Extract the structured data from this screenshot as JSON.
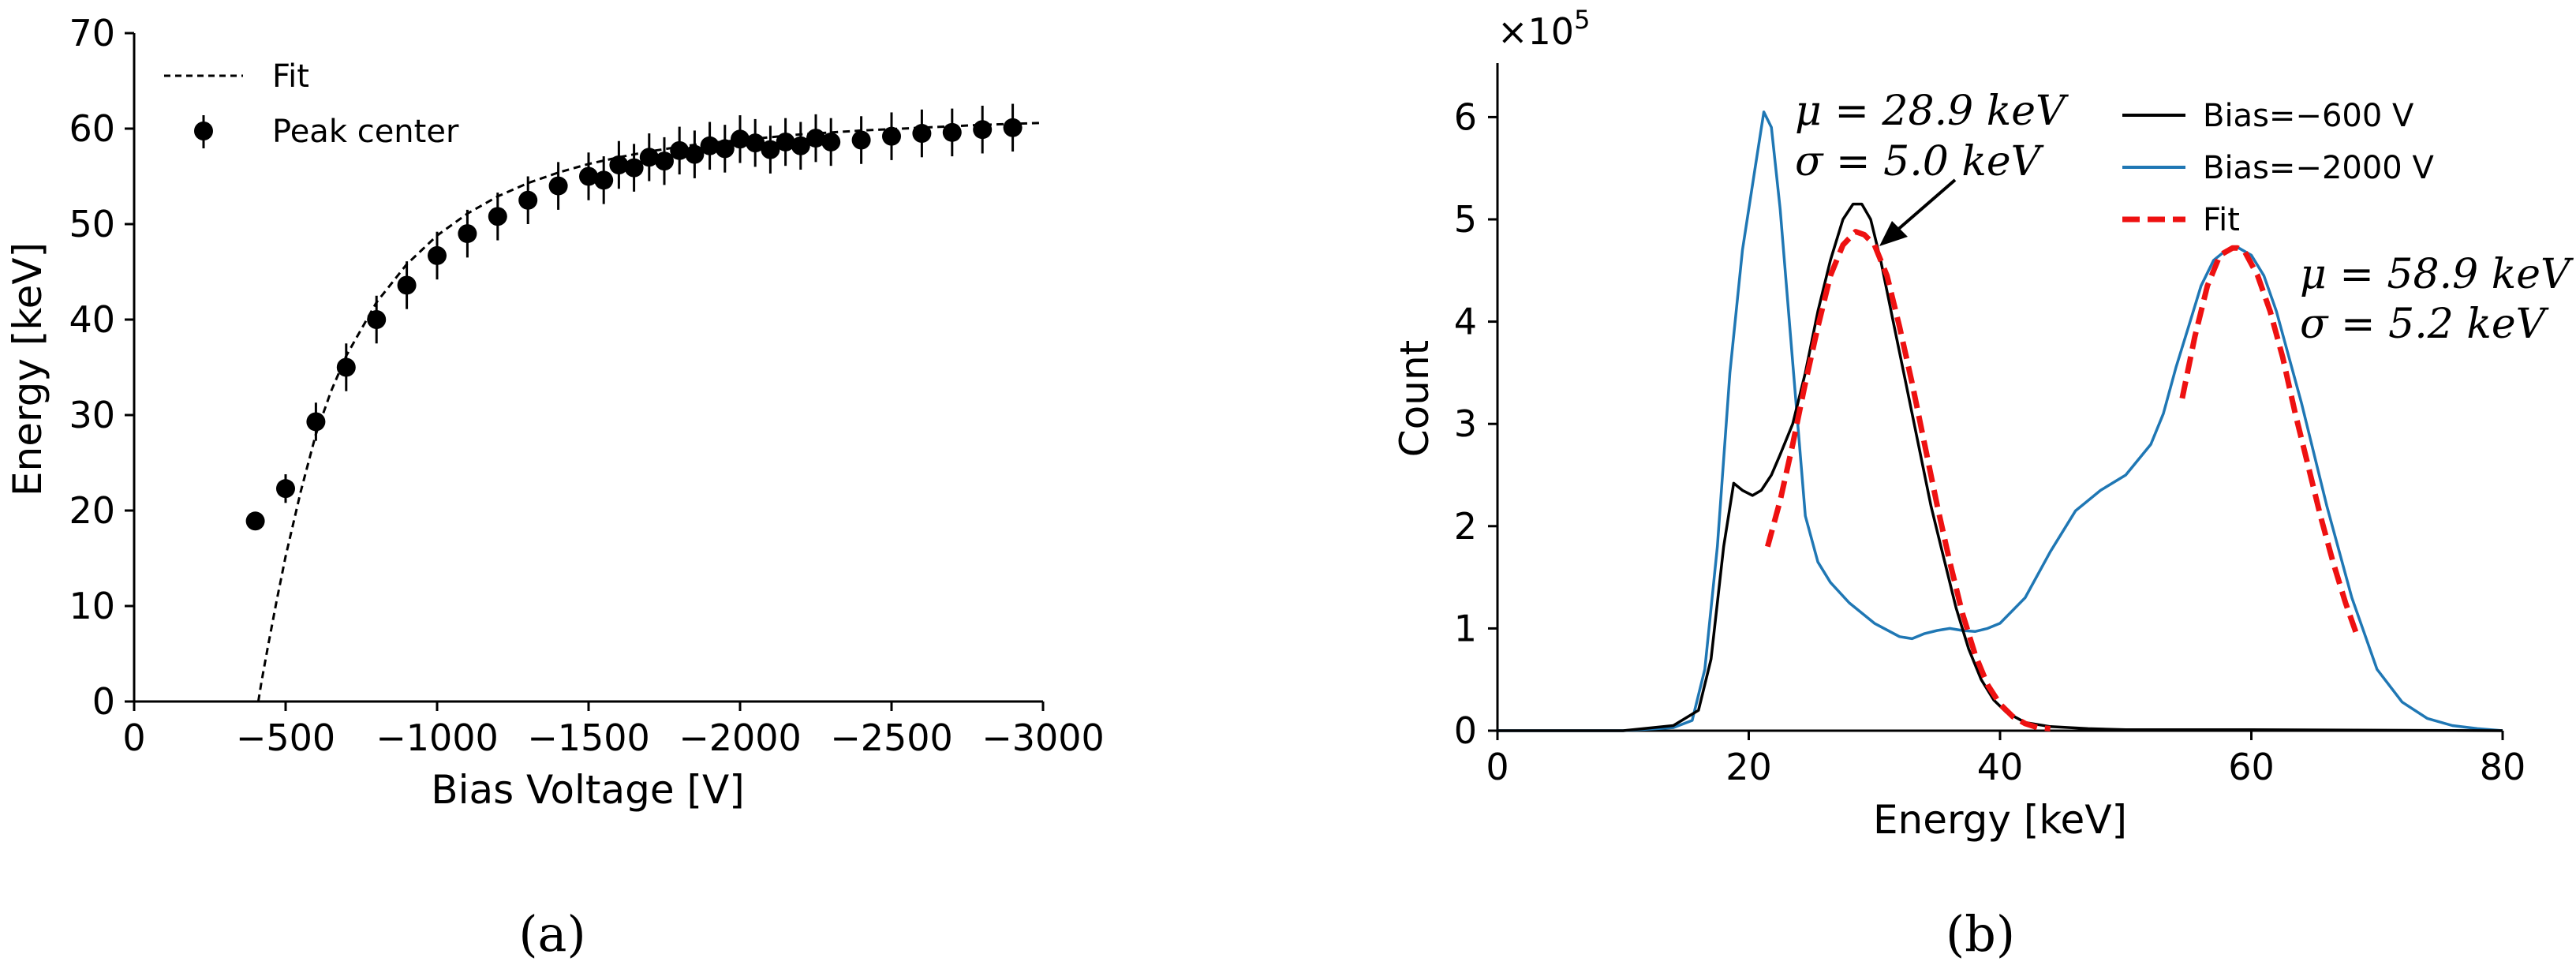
{
  "panels": {
    "a_label": "(a)",
    "b_label": "(b)"
  },
  "chart_data": [
    {
      "type": "scatter",
      "panel": "a",
      "xlabel": "Bias Voltage [V]",
      "ylabel": "Energy [keV]",
      "xlim": [
        0,
        -3000
      ],
      "ylim": [
        0,
        70
      ],
      "xticks": [
        0,
        -500,
        -1000,
        -1500,
        -2000,
        -2500,
        -3000
      ],
      "xtick_labels": [
        "0",
        "−500",
        "−1000",
        "−1500",
        "−2000",
        "−2500",
        "−3000"
      ],
      "yticks": [
        0,
        10,
        20,
        30,
        40,
        50,
        60,
        70
      ],
      "ytick_labels": [
        "0",
        "10",
        "20",
        "30",
        "40",
        "50",
        "60",
        "70"
      ],
      "legend_position": "top-left",
      "series": [
        {
          "name": "Peak center",
          "style": "markers-with-errorbars",
          "color": "#000000",
          "points": [
            {
              "x": -400,
              "y": 18.9,
              "err": 0
            },
            {
              "x": -500,
              "y": 22.3,
              "err": 1.5
            },
            {
              "x": -600,
              "y": 29.3,
              "err": 2.0
            },
            {
              "x": -700,
              "y": 35.0,
              "err": 2.5
            },
            {
              "x": -800,
              "y": 40.0,
              "err": 2.5
            },
            {
              "x": -900,
              "y": 43.6,
              "err": 2.5
            },
            {
              "x": -1000,
              "y": 46.7,
              "err": 2.5
            },
            {
              "x": -1100,
              "y": 49.0,
              "err": 2.5
            },
            {
              "x": -1200,
              "y": 50.8,
              "err": 2.5
            },
            {
              "x": -1300,
              "y": 52.5,
              "err": 2.5
            },
            {
              "x": -1400,
              "y": 54.0,
              "err": 2.5
            },
            {
              "x": -1500,
              "y": 55.0,
              "err": 2.5
            },
            {
              "x": -1550,
              "y": 54.6,
              "err": 2.5
            },
            {
              "x": -1600,
              "y": 56.2,
              "err": 2.5
            },
            {
              "x": -1650,
              "y": 55.9,
              "err": 2.5
            },
            {
              "x": -1700,
              "y": 57.0,
              "err": 2.5
            },
            {
              "x": -1750,
              "y": 56.6,
              "err": 2.5
            },
            {
              "x": -1800,
              "y": 57.7,
              "err": 2.5
            },
            {
              "x": -1850,
              "y": 57.3,
              "err": 2.5
            },
            {
              "x": -1900,
              "y": 58.2,
              "err": 2.5
            },
            {
              "x": -1950,
              "y": 57.9,
              "err": 2.5
            },
            {
              "x": -2000,
              "y": 58.9,
              "err": 2.5
            },
            {
              "x": -2050,
              "y": 58.5,
              "err": 2.5
            },
            {
              "x": -2100,
              "y": 57.8,
              "err": 2.5
            },
            {
              "x": -2150,
              "y": 58.6,
              "err": 2.5
            },
            {
              "x": -2200,
              "y": 58.2,
              "err": 2.5
            },
            {
              "x": -2250,
              "y": 59.0,
              "err": 2.5
            },
            {
              "x": -2300,
              "y": 58.6,
              "err": 2.5
            },
            {
              "x": -2400,
              "y": 58.8,
              "err": 2.5
            },
            {
              "x": -2500,
              "y": 59.2,
              "err": 2.5
            },
            {
              "x": -2600,
              "y": 59.5,
              "err": 2.5
            },
            {
              "x": -2700,
              "y": 59.6,
              "err": 2.5
            },
            {
              "x": -2800,
              "y": 59.9,
              "err": 2.5
            },
            {
              "x": -2900,
              "y": 60.1,
              "err": 2.5
            }
          ]
        },
        {
          "name": "Fit",
          "style": "dashed-line",
          "color": "#000000",
          "x": [
            -410,
            -420,
            -440,
            -470,
            -500,
            -550,
            -600,
            -650,
            -700,
            -800,
            -900,
            -1000,
            -1100,
            -1200,
            -1300,
            -1400,
            -1500,
            -1600,
            -1700,
            -1800,
            -1900,
            -2000,
            -2200,
            -2400,
            -2600,
            -2800,
            -3000
          ],
          "y": [
            0,
            2.0,
            5.5,
            10.5,
            15.2,
            22.0,
            28.0,
            32.5,
            36.2,
            41.8,
            45.8,
            48.8,
            51.1,
            52.9,
            54.3,
            55.4,
            56.3,
            57.0,
            57.6,
            58.1,
            58.5,
            58.8,
            59.4,
            59.8,
            60.1,
            60.4,
            60.6
          ]
        }
      ]
    },
    {
      "type": "line",
      "panel": "b",
      "xlabel": "Energy [keV]",
      "ylabel": "Count",
      "xlim": [
        0,
        80
      ],
      "ylim": [
        0,
        6.5
      ],
      "y_multiplier_label": "×10",
      "y_multiplier_exponent": "5",
      "xticks": [
        0,
        20,
        40,
        60,
        80
      ],
      "xtick_labels": [
        "0",
        "20",
        "40",
        "60",
        "80"
      ],
      "yticks": [
        0,
        1,
        2,
        3,
        4,
        5,
        6
      ],
      "ytick_labels": [
        "0",
        "1",
        "2",
        "3",
        "4",
        "5",
        "6"
      ],
      "legend_position": "top-right",
      "series": [
        {
          "name": "Bias=−600 V",
          "color": "#000000",
          "x": [
            0,
            10,
            14,
            16,
            17,
            18,
            18.8,
            19.5,
            20.3,
            21,
            21.8,
            22.5,
            23.5,
            24.5,
            25.5,
            26.5,
            27.5,
            28.3,
            29,
            29.7,
            30.5,
            31.5,
            32.5,
            33.5,
            34.5,
            35.5,
            36.5,
            37.5,
            38.5,
            39.5,
            40.5,
            42,
            44,
            47,
            50,
            60,
            80
          ],
          "y": [
            0,
            0,
            0.05,
            0.2,
            0.7,
            1.8,
            2.42,
            2.35,
            2.3,
            2.35,
            2.5,
            2.7,
            3.0,
            3.5,
            4.1,
            4.6,
            5.0,
            5.15,
            5.15,
            5.0,
            4.6,
            4.0,
            3.4,
            2.8,
            2.2,
            1.7,
            1.2,
            0.8,
            0.5,
            0.3,
            0.18,
            0.08,
            0.04,
            0.02,
            0.01,
            0.01,
            0
          ]
        },
        {
          "name": "Bias=−2000 V",
          "color": "#1f77b4",
          "x": [
            0,
            10,
            14,
            15.5,
            16.5,
            17.5,
            18.5,
            19.5,
            20.5,
            21.2,
            21.8,
            22.5,
            23.5,
            24.5,
            25.5,
            26.5,
            28,
            30,
            32,
            33,
            34,
            35,
            36,
            37,
            38,
            39,
            40,
            42,
            44,
            46,
            48,
            50,
            52,
            53,
            54,
            55,
            56,
            57,
            58,
            59,
            60,
            61,
            62,
            64,
            66,
            68,
            70,
            72,
            74,
            76,
            78,
            80
          ],
          "y": [
            0,
            0,
            0.03,
            0.1,
            0.6,
            1.8,
            3.5,
            4.7,
            5.5,
            6.05,
            5.9,
            5.1,
            3.6,
            2.1,
            1.65,
            1.45,
            1.25,
            1.05,
            0.92,
            0.9,
            0.95,
            0.98,
            1.0,
            0.98,
            0.97,
            1.0,
            1.05,
            1.3,
            1.75,
            2.15,
            2.35,
            2.5,
            2.8,
            3.1,
            3.55,
            3.95,
            4.35,
            4.6,
            4.7,
            4.72,
            4.65,
            4.45,
            4.1,
            3.2,
            2.2,
            1.3,
            0.6,
            0.28,
            0.12,
            0.05,
            0.02,
            0
          ]
        },
        {
          "name": "Fit",
          "color": "#ee1111",
          "style": "dashed",
          "segments": [
            {
              "x": [
                21.5,
                22.5,
                23.5,
                24.5,
                25.5,
                26.5,
                27.5,
                28.5,
                29.2,
                30,
                31,
                32,
                33,
                34,
                35,
                36,
                37,
                38,
                39,
                40,
                41,
                42,
                43,
                44
              ],
              "y": [
                1.8,
                2.25,
                2.8,
                3.4,
                3.95,
                4.45,
                4.75,
                4.88,
                4.85,
                4.75,
                4.45,
                3.95,
                3.4,
                2.8,
                2.2,
                1.65,
                1.15,
                0.75,
                0.45,
                0.26,
                0.14,
                0.07,
                0.03,
                0.02
              ]
            },
            {
              "x": [
                54.5,
                55.5,
                56.5,
                57.5,
                58.5,
                58.9,
                59.5,
                60.5,
                61.5,
                62.5,
                63.5,
                64.5,
                65.5,
                66.5,
                67.5,
                68.5
              ],
              "y": [
                3.25,
                3.85,
                4.35,
                4.65,
                4.72,
                4.72,
                4.68,
                4.45,
                4.1,
                3.65,
                3.1,
                2.6,
                2.1,
                1.65,
                1.25,
                0.9
              ]
            }
          ]
        }
      ],
      "annotations": [
        {
          "line1": "μ = 28.9 keV",
          "line2": "σ = 5.0 keV",
          "arrow_to": {
            "x": 30.5,
            "y": 4.95
          }
        },
        {
          "line1": "μ = 58.9 keV",
          "line2": "σ = 5.2 keV"
        }
      ]
    }
  ]
}
